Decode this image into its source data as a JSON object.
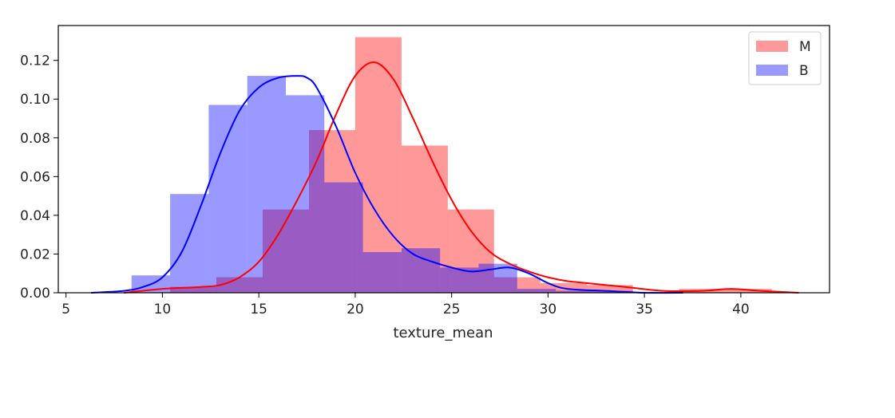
{
  "chart_data": {
    "type": "histogram",
    "xlabel": "texture_mean",
    "ylabel": "",
    "xlim": [
      4.6,
      44.6
    ],
    "ylim": [
      0,
      0.138
    ],
    "x_ticks": [
      "5",
      "10",
      "15",
      "20",
      "25",
      "30",
      "35",
      "40"
    ],
    "y_ticks": [
      "0.00",
      "0.02",
      "0.04",
      "0.06",
      "0.08",
      "0.10",
      "0.12"
    ],
    "grid": false,
    "legend": "top-right",
    "series": [
      {
        "name": "M",
        "color": "#ff0000",
        "bin_edges": [
          10.4,
          12.8,
          15.2,
          17.6,
          20.0,
          22.4,
          24.8,
          27.2,
          29.6,
          32.0,
          34.4,
          36.8,
          39.2,
          41.6
        ],
        "bar_values": [
          0.003,
          0.008,
          0.043,
          0.084,
          0.132,
          0.076,
          0.043,
          0.008,
          0.005,
          0.004,
          0.0,
          0.002,
          0.002
        ],
        "kde_x": [
          8.0,
          10.0,
          12.0,
          13.0,
          14.0,
          15.0,
          16.0,
          17.0,
          18.0,
          19.0,
          20.0,
          21.0,
          22.0,
          23.0,
          24.0,
          25.0,
          26.0,
          27.0,
          28.0,
          29.0,
          30.0,
          31.0,
          32.0,
          34.0,
          36.0,
          38.0,
          39.5,
          41.0,
          43.0
        ],
        "kde_y": [
          0.0,
          0.002,
          0.003,
          0.004,
          0.008,
          0.016,
          0.03,
          0.048,
          0.068,
          0.092,
          0.112,
          0.119,
          0.11,
          0.09,
          0.068,
          0.048,
          0.032,
          0.021,
          0.015,
          0.011,
          0.008,
          0.006,
          0.005,
          0.003,
          0.001,
          0.001,
          0.002,
          0.001,
          0.0
        ]
      },
      {
        "name": "B",
        "color": "#0000ff",
        "bin_edges": [
          6.4,
          8.4,
          10.4,
          12.4,
          14.4,
          16.4,
          18.4,
          20.4,
          22.4,
          24.4,
          26.4,
          28.4,
          30.4,
          32.4,
          34.4,
          36.4,
          38.4
        ],
        "bar_values": [
          0.0,
          0.009,
          0.051,
          0.097,
          0.112,
          0.102,
          0.057,
          0.021,
          0.023,
          0.013,
          0.015,
          0.002,
          0.001,
          0.001,
          0.0,
          0.0
        ],
        "kde_x": [
          6.3,
          8.0,
          9.0,
          10.0,
          11.0,
          12.0,
          13.0,
          14.0,
          15.0,
          16.0,
          17.0,
          17.5,
          18.0,
          19.0,
          20.0,
          21.0,
          22.0,
          23.0,
          24.0,
          25.0,
          26.0,
          27.0,
          28.0,
          29.0,
          30.0,
          31.0,
          33.0,
          35.0,
          37.0
        ],
        "kde_y": [
          0.0,
          0.001,
          0.003,
          0.008,
          0.021,
          0.045,
          0.072,
          0.094,
          0.106,
          0.111,
          0.112,
          0.111,
          0.106,
          0.086,
          0.062,
          0.043,
          0.029,
          0.02,
          0.016,
          0.013,
          0.011,
          0.012,
          0.013,
          0.01,
          0.005,
          0.002,
          0.001,
          0.0,
          0.0
        ]
      }
    ]
  }
}
